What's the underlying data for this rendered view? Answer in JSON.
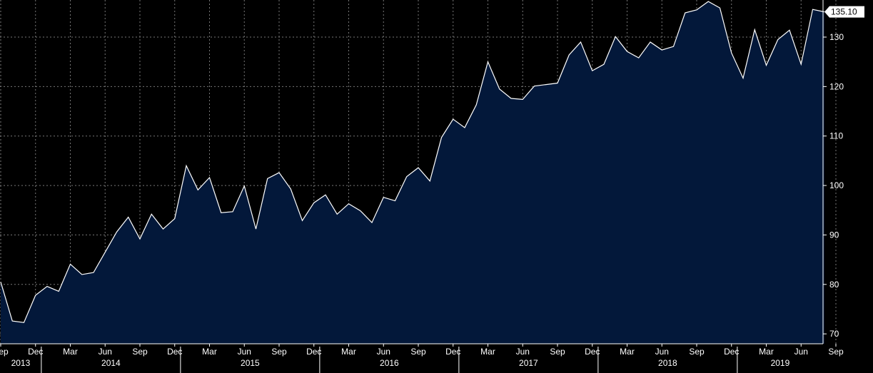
{
  "chart_data": {
    "type": "area",
    "colors": {
      "fill": "#03183A",
      "line": "#FFFFFF",
      "background": "#000000",
      "grid": "#777777",
      "axis": "#FFFFFF"
    },
    "grid": true,
    "ylim": [
      68,
      137.5
    ],
    "y_ticks": [
      70,
      80,
      90,
      100,
      110,
      120,
      130
    ],
    "x_tick_labels": [
      "Sep",
      "Dec",
      "Mar",
      "Jun",
      "Sep",
      "Dec",
      "Mar",
      "Jun",
      "Sep",
      "Dec",
      "Mar",
      "Jun",
      "Sep",
      "Dec",
      "Mar",
      "Jun",
      "Sep",
      "Dec",
      "Mar",
      "Jun",
      "Sep",
      "Dec",
      "Mar",
      "Jun",
      "Sep"
    ],
    "year_labels": [
      "2013",
      "2014",
      "2015",
      "2016",
      "2017",
      "2018",
      "2019"
    ],
    "last_value_label": "135.10",
    "x_range": [
      "2013-09",
      "2019-09"
    ],
    "x": [
      "2013-09",
      "2013-10",
      "2013-11",
      "2013-12",
      "2014-01",
      "2014-02",
      "2014-03",
      "2014-04",
      "2014-05",
      "2014-06",
      "2014-07",
      "2014-08",
      "2014-09",
      "2014-10",
      "2014-11",
      "2014-12",
      "2015-01",
      "2015-02",
      "2015-03",
      "2015-04",
      "2015-05",
      "2015-06",
      "2015-07",
      "2015-08",
      "2015-09",
      "2015-10",
      "2015-11",
      "2015-12",
      "2016-01",
      "2016-02",
      "2016-03",
      "2016-04",
      "2016-05",
      "2016-06",
      "2016-07",
      "2016-08",
      "2016-09",
      "2016-10",
      "2016-11",
      "2016-12",
      "2017-01",
      "2017-02",
      "2017-03",
      "2017-04",
      "2017-05",
      "2017-06",
      "2017-07",
      "2017-08",
      "2017-09",
      "2017-10",
      "2017-11",
      "2017-12",
      "2018-01",
      "2018-02",
      "2018-03",
      "2018-04",
      "2018-05",
      "2018-06",
      "2018-07",
      "2018-08",
      "2018-09",
      "2018-10",
      "2018-11",
      "2018-12",
      "2019-01",
      "2019-02",
      "2019-03",
      "2019-04",
      "2019-05",
      "2019-06",
      "2019-07",
      "2019-08"
    ],
    "series": [
      {
        "values": [
          80.5,
          72.6,
          72.3,
          77.8,
          79.6,
          78.6,
          84.1,
          82.0,
          82.4,
          86.5,
          90.6,
          93.6,
          89.2,
          94.2,
          91.2,
          93.3,
          104.0,
          99.1,
          101.6,
          94.5,
          94.7,
          99.9,
          91.2,
          101.4,
          102.6,
          99.3,
          92.9,
          96.5,
          98.1,
          94.2,
          96.3,
          94.9,
          92.5,
          97.6,
          96.9,
          101.8,
          103.6,
          100.9,
          109.7,
          113.4,
          111.7,
          116.3,
          125.0,
          119.5,
          117.6,
          117.4,
          120.1,
          120.4,
          120.7,
          126.4,
          129.0,
          123.2,
          124.5,
          130.1,
          127.1,
          125.8,
          129.0,
          127.4,
          128.1,
          134.9,
          135.5,
          137.2,
          135.9,
          126.8,
          121.7,
          131.5,
          124.3,
          129.5,
          131.4,
          124.5,
          135.6,
          135.1
        ]
      }
    ]
  }
}
